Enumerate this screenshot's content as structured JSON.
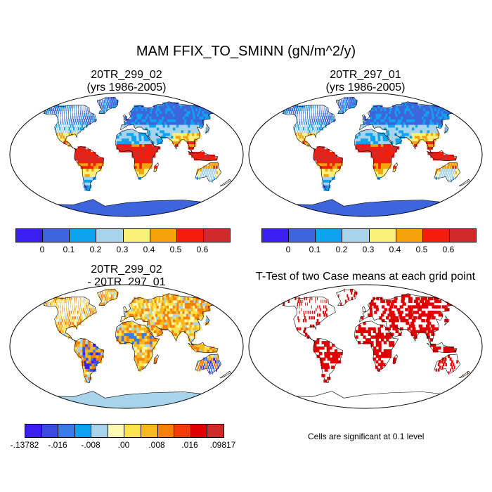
{
  "title": "MAM FFIX_TO_SMINN (gN/m^2/y)",
  "panels": {
    "case1": {
      "line1": "20TR_299_02",
      "line2": "(yrs 1986-2005)"
    },
    "case2": {
      "line1": "20TR_297_01",
      "line2": "(yrs 1986-2005)"
    },
    "diff": {
      "line1": "20TR_299_02",
      "line2": "- 20TR_297_01"
    },
    "ttest": {
      "line1": "T-Test of two Case means at each grid point"
    }
  },
  "colorbar_top": {
    "colors": [
      "#3a1ff0",
      "#3d66dc",
      "#0ea3ef",
      "#a7d4ea",
      "#fbf07a",
      "#f5a30a",
      "#f41c0b",
      "#d12a2b"
    ],
    "labels": [
      "0",
      "0.1",
      "0.2",
      "0.3",
      "0.4",
      "0.5",
      "0.6"
    ]
  },
  "colorbar_diff": {
    "colors": [
      "#3a1ff0",
      "#3d4bdc",
      "#3a7be6",
      "#0ea3ef",
      "#a7d4ea",
      "#fdf9b4",
      "#fde34d",
      "#f8b820",
      "#f5800a",
      "#f43a0b",
      "#e00000",
      "#d12a2b"
    ],
    "labels": [
      "-.13782",
      "-.016",
      "-.008",
      ".00",
      ".008",
      ".016",
      ".09817"
    ]
  },
  "significance_note": "Cells are significant at 0.1 level",
  "colors": {
    "ocean": "#ffffff",
    "antarctica_abs": "#3d66dc",
    "antarctica_diff": "#a7d4ea",
    "significant": "#e00000"
  }
}
